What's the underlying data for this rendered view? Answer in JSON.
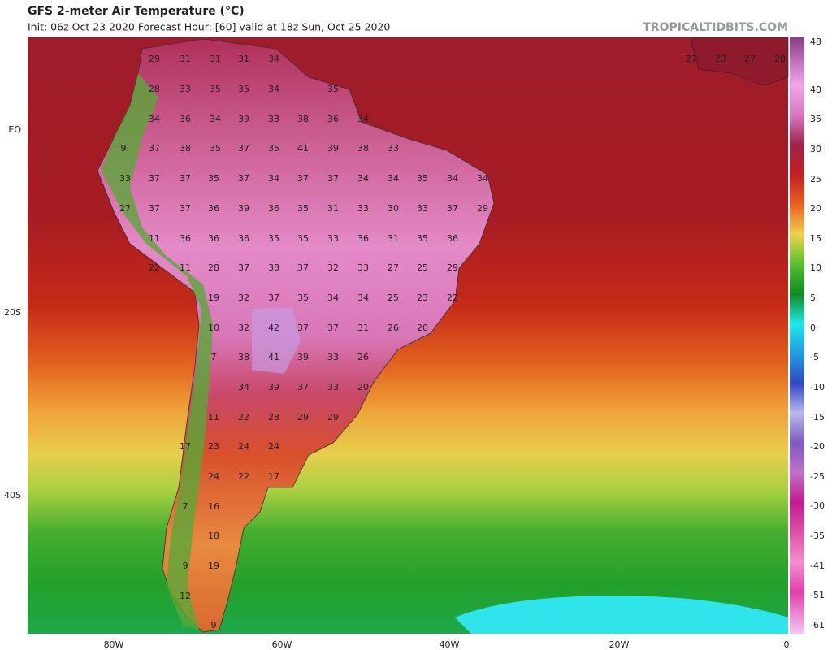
{
  "header": {
    "title": "GFS 2-meter Air Temperature (°C)",
    "subtitle": "Init: 06z Oct 23 2020   Forecast Hour: [60]   valid at 18z Sun, Oct 25 2020",
    "brand": "TROPICALTIDBITS.COM"
  },
  "x_axis_labels": [
    "80W",
    "60W",
    "40W",
    "20W",
    "0"
  ],
  "y_axis_labels": [
    "EQ",
    "20S",
    "40S"
  ],
  "colorbar_labels": [
    48,
    40,
    35,
    30,
    25,
    20,
    15,
    10,
    5,
    0,
    -5,
    -10,
    -15,
    -20,
    -25,
    -30,
    -35,
    -41,
    -51,
    -61
  ],
  "map_labels": [
    29,
    31,
    31,
    31,
    34,
    27,
    23,
    27,
    28,
    28,
    33,
    35,
    35,
    34,
    35,
    34,
    36,
    34,
    39,
    33,
    38,
    36,
    34,
    9,
    37,
    38,
    35,
    37,
    35,
    41,
    39,
    38,
    33,
    33,
    37,
    37,
    35,
    37,
    34,
    37,
    37,
    34,
    34,
    35,
    34,
    34,
    27,
    37,
    37,
    36,
    39,
    36,
    35,
    31,
    33,
    30,
    33,
    37,
    29,
    11,
    36,
    36,
    36,
    35,
    35,
    33,
    36,
    31,
    35,
    36,
    22,
    11,
    28,
    37,
    38,
    37,
    32,
    33,
    27,
    25,
    29,
    19,
    32,
    37,
    35,
    34,
    34,
    25,
    23,
    22,
    10,
    32,
    42,
    37,
    37,
    31,
    26,
    20,
    7,
    38,
    41,
    39,
    33,
    26,
    34,
    39,
    37,
    33,
    20,
    11,
    22,
    23,
    29,
    29,
    17,
    23,
    24,
    24,
    24,
    22,
    17,
    7,
    16,
    18,
    9,
    19,
    12,
    9
  ]
}
